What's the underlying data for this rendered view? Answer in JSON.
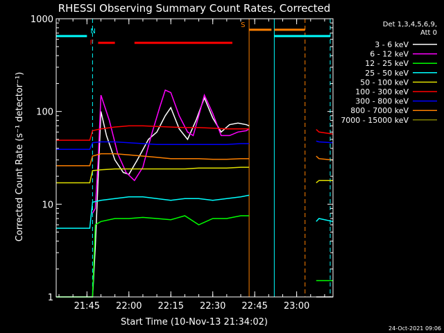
{
  "chart_data": {
    "type": "line",
    "title": "RHESSI Observing Summary Count Rates, Corrected",
    "xlabel": "Start Time (10-Nov-13 21:34:02)",
    "ylabel": "Corrected Count Rate (s⁻¹ detector⁻¹)",
    "yscale": "log",
    "ylim": [
      1,
      1000
    ],
    "xlim": [
      "21:34",
      "23:13"
    ],
    "x_ticks": [
      "21:45",
      "22:00",
      "22:15",
      "22:30",
      "22:45",
      "23:00"
    ],
    "y_ticks": [
      "1",
      "10",
      "100",
      "1000"
    ],
    "legend_header": [
      "Det 1,3,4,5,6,9,",
      "Att 0"
    ],
    "legend_position": "right",
    "date_stamp": "24-Oct-2021 09:06",
    "colors": {
      "3-6": "#ffffff",
      "6-12": "#ff00ff",
      "12-25": "#00ff00",
      "25-50": "#00ffff",
      "50-100": "#e0e000",
      "100-300": "#ff0000",
      "300-800": "#0000ff",
      "800-7000": "#ff8000",
      "7000-15000": "#808000"
    },
    "series": [
      {
        "name": "3 - 6 keV",
        "key": "3-6",
        "x": [
          "21:34",
          "21:47",
          "21:48",
          "21:50",
          "21:52",
          "21:55",
          "21:58",
          "22:00",
          "22:03",
          "22:07",
          "22:10",
          "22:13",
          "22:15",
          "22:18",
          "22:21",
          "22:24",
          "22:27",
          "22:30",
          "22:33",
          "22:36",
          "22:39",
          "22:42",
          "22:43"
        ],
        "y": [
          1,
          1,
          3.5,
          100,
          55,
          30,
          22,
          21,
          30,
          50,
          60,
          90,
          110,
          65,
          50,
          80,
          140,
          85,
          60,
          72,
          75,
          72,
          70
        ]
      },
      {
        "name": "6 - 12 keV",
        "key": "6-12",
        "x": [
          "21:47",
          "21:48",
          "21:49",
          "21:50",
          "21:53",
          "21:56",
          "21:59",
          "22:02",
          "22:05",
          "22:08",
          "22:11",
          "22:13",
          "22:15",
          "22:18",
          "22:21",
          "22:23",
          "22:25",
          "22:27",
          "22:30",
          "22:33",
          "22:36",
          "22:39",
          "22:42",
          "22:43"
        ],
        "y": [
          8,
          9,
          30,
          150,
          80,
          35,
          22,
          18,
          25,
          55,
          110,
          170,
          160,
          90,
          60,
          55,
          90,
          150,
          95,
          55,
          55,
          60,
          62,
          65
        ]
      },
      {
        "name": "12 - 25 keV",
        "key": "12-25",
        "x": [
          "21:34",
          "21:47",
          "21:48",
          "21:50",
          "21:55",
          "22:00",
          "22:05",
          "22:10",
          "22:15",
          "22:20",
          "22:25",
          "22:30",
          "22:35",
          "22:40",
          "22:43"
        ],
        "y": [
          1,
          1,
          6,
          6.5,
          7,
          7,
          7.2,
          7,
          6.8,
          7.5,
          6,
          7,
          7,
          7.5,
          7.5
        ]
      },
      {
        "name": "25 - 50 keV",
        "key": "25-50",
        "x": [
          "21:34",
          "21:46",
          "21:47",
          "21:50",
          "21:55",
          "22:00",
          "22:05",
          "22:10",
          "22:15",
          "22:20",
          "22:25",
          "22:30",
          "22:35",
          "22:40",
          "22:43"
        ],
        "y": [
          5.5,
          5.5,
          10.5,
          11,
          11.5,
          12,
          12,
          11.5,
          11,
          11.5,
          11.5,
          11,
          11.5,
          12,
          12.5
        ]
      },
      {
        "name": "50 - 100 keV",
        "key": "50-100",
        "x": [
          "21:34",
          "21:46",
          "21:47",
          "21:50",
          "21:55",
          "22:00",
          "22:05",
          "22:10",
          "22:15",
          "22:20",
          "22:25",
          "22:30",
          "22:35",
          "22:40",
          "22:43"
        ],
        "y": [
          17,
          17,
          23,
          23.5,
          24,
          24,
          24,
          24,
          24,
          24,
          24.5,
          24.5,
          24.5,
          25,
          25
        ]
      },
      {
        "name": "100 - 300 keV",
        "key": "100-300",
        "x": [
          "21:34",
          "21:46",
          "21:47",
          "21:50",
          "21:55",
          "22:00",
          "22:05",
          "22:10",
          "22:15",
          "22:20",
          "22:25",
          "22:30",
          "22:35",
          "22:40",
          "22:43"
        ],
        "y": [
          49,
          49,
          62,
          65,
          68,
          70,
          70,
          69,
          68,
          67,
          67,
          66,
          65,
          65,
          65
        ]
      },
      {
        "name": "300 - 800 keV",
        "key": "300-800",
        "x": [
          "21:34",
          "21:46",
          "21:47",
          "21:50",
          "21:55",
          "22:00",
          "22:05",
          "22:10",
          "22:15",
          "22:20",
          "22:25",
          "22:30",
          "22:35",
          "22:40",
          "22:43"
        ],
        "y": [
          39,
          39,
          46,
          47,
          47,
          46,
          45,
          44,
          44,
          44,
          44,
          44,
          44,
          45,
          45
        ]
      },
      {
        "name": "800 - 7000 keV",
        "key": "800-7000",
        "x": [
          "21:34",
          "21:46",
          "21:47",
          "21:50",
          "21:55",
          "22:00",
          "22:05",
          "22:10",
          "22:15",
          "22:20",
          "22:25",
          "22:30",
          "22:35",
          "22:40",
          "22:43"
        ],
        "y": [
          26,
          26,
          33,
          35,
          35,
          34,
          33,
          32,
          31,
          31,
          31,
          30.5,
          30.5,
          31,
          31
        ]
      },
      {
        "name": "7000 - 15000 keV",
        "key": "7000-15000",
        "x": [],
        "y": []
      }
    ],
    "second_segment": {
      "x": [
        "23:07",
        "23:08",
        "23:13"
      ],
      "3-6": [
        1,
        1,
        1
      ],
      "12-25": [
        1.5,
        1.5,
        1.5
      ],
      "25-50": [
        6.5,
        7,
        6.5
      ],
      "50-100": [
        17,
        18,
        18
      ],
      "100-300": [
        64,
        60,
        57
      ],
      "300-800": [
        48,
        47,
        46
      ],
      "800-7000": [
        33,
        31,
        30
      ]
    },
    "flags": [
      {
        "label": "N",
        "color": "#00ffff",
        "segments": [
          [
            "21:34",
            "21:45"
          ],
          [
            "22:52",
            "23:12"
          ]
        ],
        "value": 650
      },
      {
        "label": "F",
        "color": "#ff0000",
        "segments": [
          [
            "21:49",
            "21:55"
          ],
          [
            "22:02",
            "22:37"
          ]
        ],
        "value": 550
      },
      {
        "label": "S",
        "color": "#ff8000",
        "segments": [
          [
            "22:43",
            "22:51"
          ],
          [
            "22:52",
            "23:03"
          ]
        ],
        "value": 760
      }
    ],
    "vlines": [
      {
        "x": "21:47",
        "color": "#00ffff",
        "style": "dashed"
      },
      {
        "x": "22:43",
        "color": "#ff8000",
        "style": "solid"
      },
      {
        "x": "22:52",
        "color": "#00ffff",
        "style": "solid"
      },
      {
        "x": "23:03",
        "color": "#ff8000",
        "style": "dashed"
      },
      {
        "x": "23:12",
        "color": "#00ffff",
        "style": "dashed"
      }
    ]
  }
}
